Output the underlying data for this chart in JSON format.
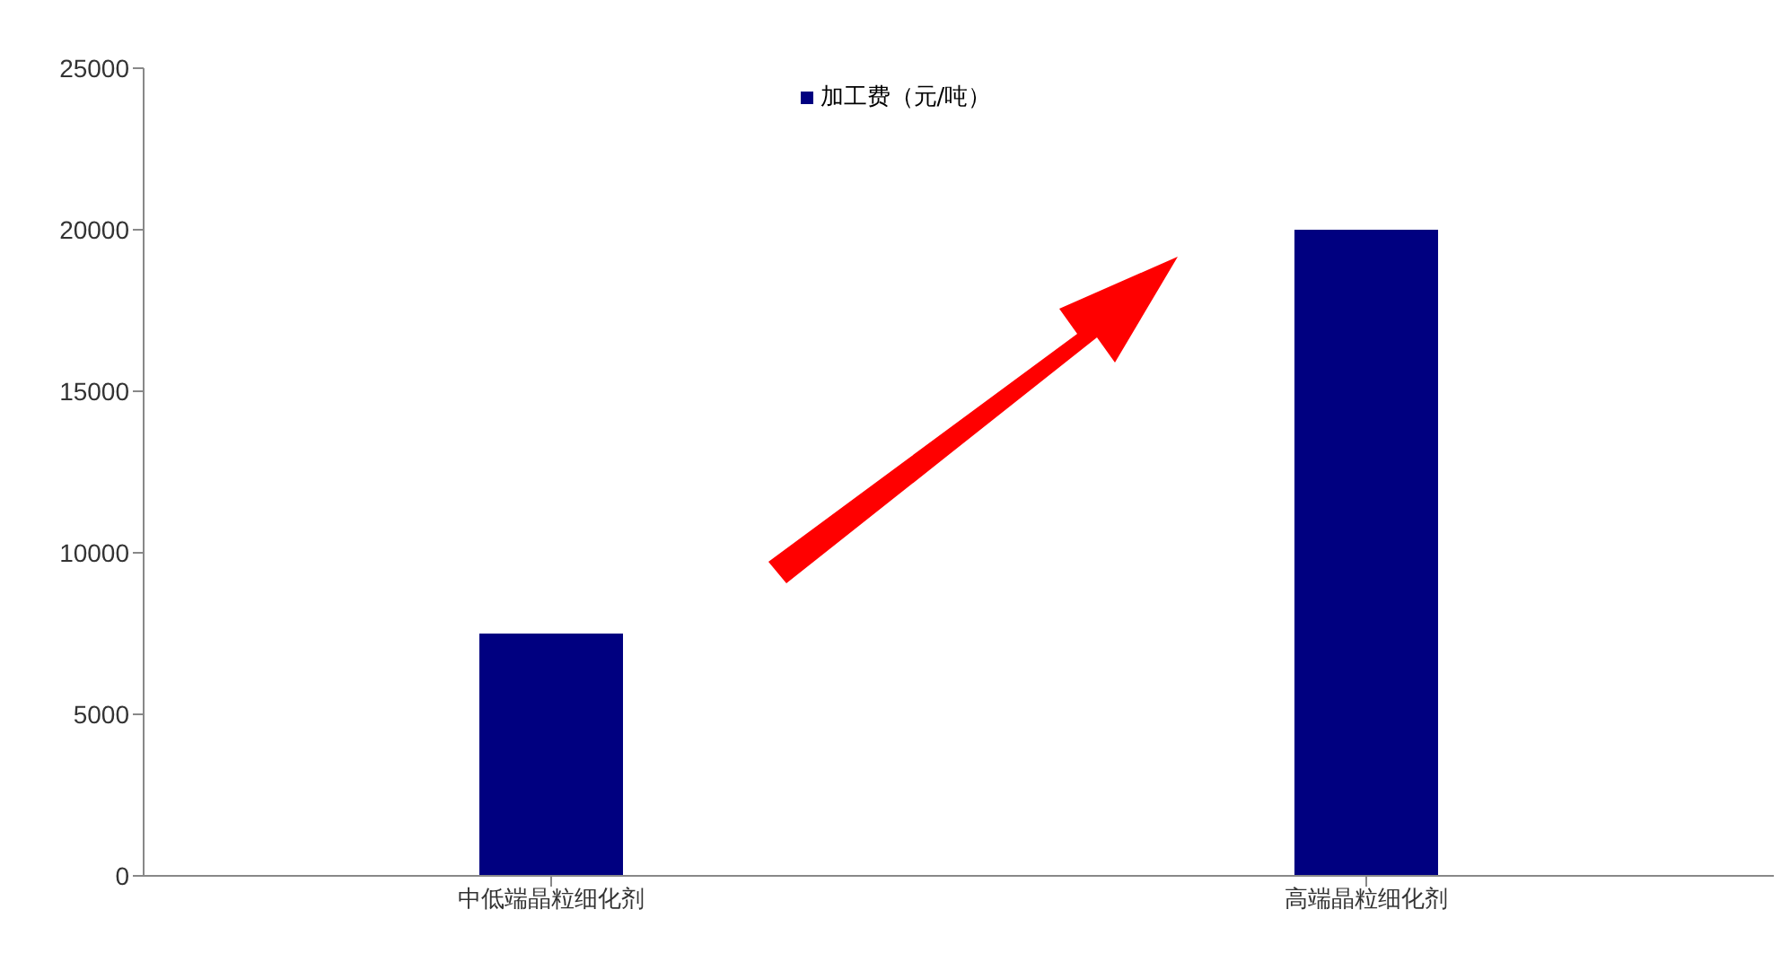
{
  "chart_data": {
    "type": "bar",
    "categories": [
      "中低端晶粒细化剂",
      "高端晶粒细化剂"
    ],
    "series": [
      {
        "name": "加工费（元/吨）",
        "color": "#000080",
        "values": [
          7500,
          20000
        ]
      }
    ],
    "ylim": [
      0,
      25000
    ],
    "yticks": [
      0,
      5000,
      10000,
      15000,
      20000,
      25000
    ],
    "grid": false,
    "legend": "top"
  }
}
